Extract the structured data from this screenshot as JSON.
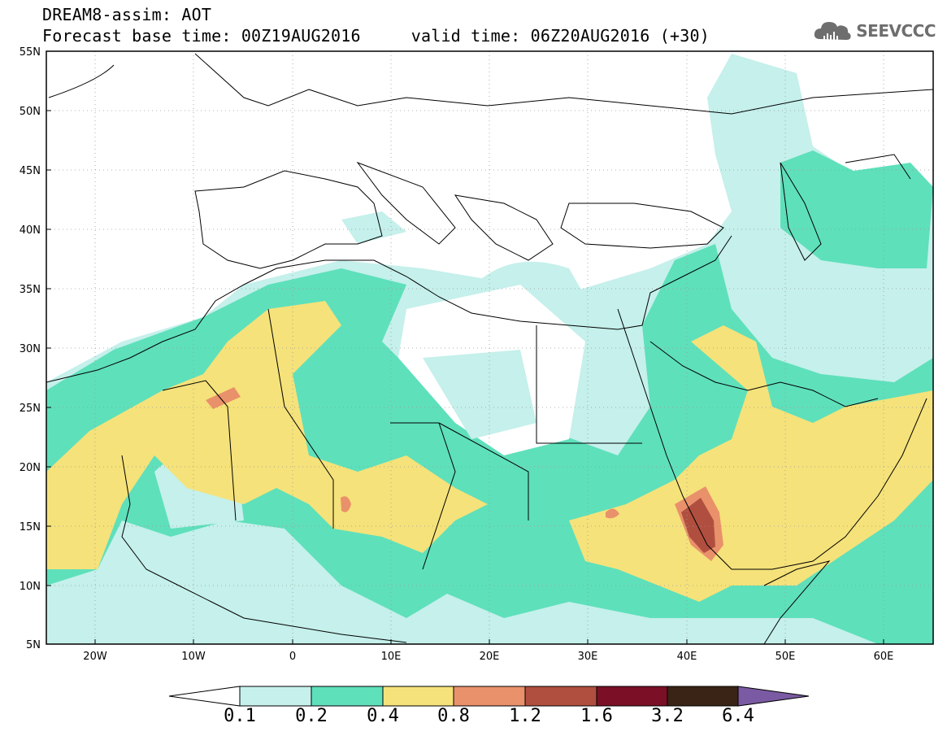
{
  "header": {
    "title_line1": "DREAM8-assim: AOT",
    "base_time": "Forecast base time: 00Z19AUG2016",
    "valid_time": "valid time: 06Z20AUG2016 (+30)",
    "logo_text": "SEEVCCC",
    "logo_icon": "cloud-icon"
  },
  "map": {
    "projection": "lat-lon",
    "lon_range": [
      -25,
      65
    ],
    "lat_range": [
      5,
      55
    ],
    "gridlines": "dotted",
    "lat_labels": [
      "55N",
      "50N",
      "45N",
      "40N",
      "35N",
      "30N",
      "25N",
      "20N",
      "15N",
      "10N",
      "5N"
    ],
    "lon_labels": [
      "20W",
      "10W",
      "0",
      "10E",
      "20E",
      "30E",
      "40E",
      "50E",
      "60E"
    ],
    "field": "Aerosol optical thickness"
  },
  "colorbar": {
    "labels": [
      "0.1",
      "0.2",
      "0.4",
      "0.8",
      "1.2",
      "1.6",
      "3.2",
      "6.4"
    ],
    "colors": [
      "#ffffff",
      "#c5f0eb",
      "#5ee0bb",
      "#f5e27a",
      "#e9916b",
      "#b04f3f",
      "#7a0f26",
      "#3a2415",
      "#7a5aa2"
    ]
  }
}
